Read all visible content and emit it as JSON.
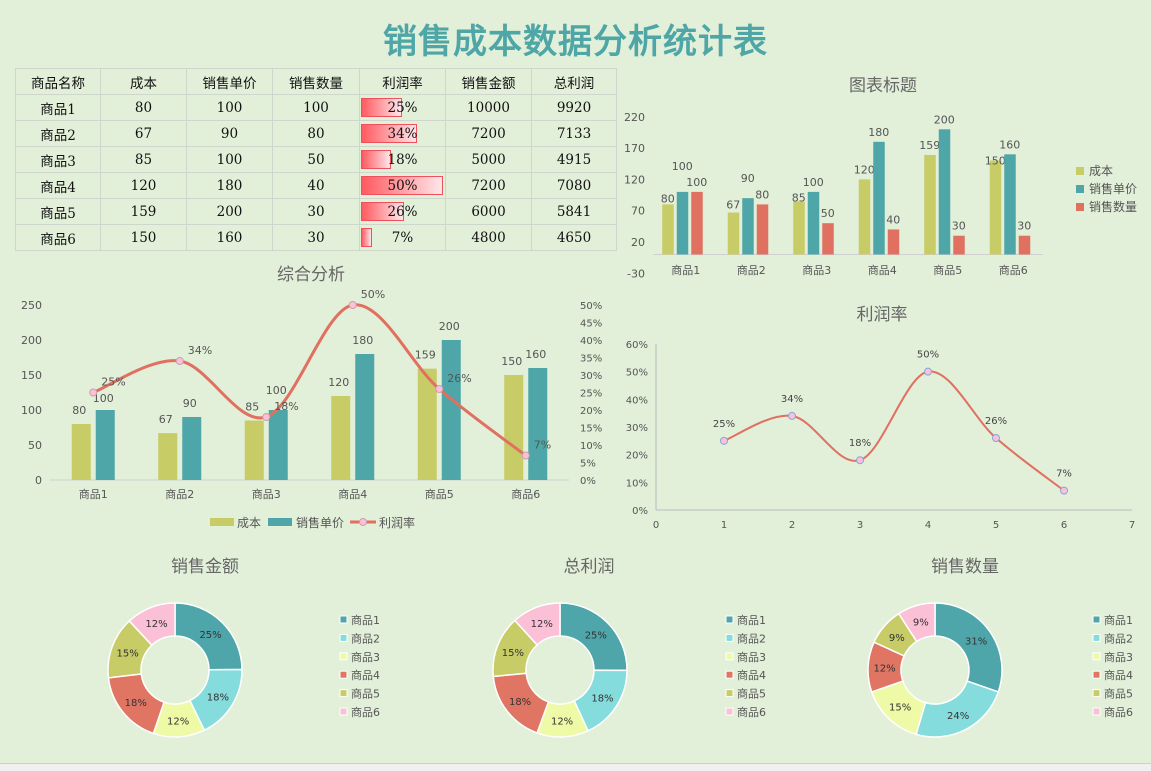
{
  "title": "销售成本数据分析统计表",
  "colors": {
    "cost": "#c8cc66",
    "price": "#4ea6a8",
    "qty": "#e07060",
    "line": "#e07060",
    "marker": "#ffc0d4",
    "donut": [
      "#4ea6aa",
      "#85dcdc",
      "#eefaa6",
      "#e07564",
      "#c8cc66",
      "#fbbfd6"
    ],
    "title": "#4ea6a6",
    "bar_fill": "#ff5a60"
  },
  "table": {
    "headers": [
      "商品名称",
      "成本",
      "销售单价",
      "销售数量",
      "利润率",
      "销售金额",
      "总利润"
    ],
    "rows": [
      {
        "name": "商品1",
        "cost": "80",
        "price": "100",
        "qty": "100",
        "margin": "25%",
        "margin_value": 25,
        "amount": "10000",
        "profit": "9920"
      },
      {
        "name": "商品2",
        "cost": "67",
        "price": "90",
        "qty": "80",
        "margin": "34%",
        "margin_value": 34,
        "amount": "7200",
        "profit": "7133"
      },
      {
        "name": "商品3",
        "cost": "85",
        "price": "100",
        "qty": "50",
        "margin": "18%",
        "margin_value": 18,
        "amount": "5000",
        "profit": "4915"
      },
      {
        "name": "商品4",
        "cost": "120",
        "price": "180",
        "qty": "40",
        "margin": "50%",
        "margin_value": 50,
        "amount": "7200",
        "profit": "7080"
      },
      {
        "name": "商品5",
        "cost": "159",
        "price": "200",
        "qty": "30",
        "margin": "26%",
        "margin_value": 26,
        "amount": "6000",
        "profit": "5841"
      },
      {
        "name": "商品6",
        "cost": "150",
        "price": "160",
        "qty": "30",
        "margin": "7%",
        "margin_value": 7,
        "amount": "4800",
        "profit": "4650"
      }
    ]
  },
  "chart_data": [
    {
      "type": "bar",
      "title": "图表标题",
      "categories": [
        "商品1",
        "商品2",
        "商品3",
        "商品4",
        "商品5",
        "商品6"
      ],
      "series": [
        {
          "name": "成本",
          "values": [
            80,
            67,
            85,
            120,
            159,
            150
          ]
        },
        {
          "name": "销售单价",
          "values": [
            100,
            90,
            100,
            180,
            200,
            160
          ]
        },
        {
          "name": "销售数量",
          "values": [
            100,
            80,
            50,
            40,
            30,
            30
          ]
        }
      ],
      "ylim": [
        -30,
        220
      ],
      "yticks": [
        220,
        170,
        120,
        70,
        20,
        -30
      ],
      "legend": "right",
      "data_labels": true
    },
    {
      "type": "bar+line",
      "title": "综合分析",
      "categories": [
        "商品1",
        "商品2",
        "商品3",
        "商品4",
        "商品5",
        "商品6"
      ],
      "series": [
        {
          "name": "成本",
          "values": [
            80,
            67,
            85,
            120,
            159,
            150
          ]
        },
        {
          "name": "销售单价",
          "values": [
            100,
            90,
            100,
            180,
            200,
            160
          ]
        },
        {
          "name": "利润率",
          "axis": "right",
          "values": [
            25,
            34,
            18,
            50,
            26,
            7
          ]
        }
      ],
      "ylim": [
        0,
        250
      ],
      "yticks": [
        0,
        50,
        100,
        150,
        200,
        250
      ],
      "y2lim": [
        0,
        50
      ],
      "y2ticks": [
        "0%",
        "5%",
        "10%",
        "15%",
        "20%",
        "25%",
        "30%",
        "35%",
        "40%",
        "45%",
        "50%"
      ],
      "legend": "bottom",
      "smooth": true
    },
    {
      "type": "scatter-line",
      "title": "利润率",
      "x": [
        1,
        2,
        3,
        4,
        5,
        6
      ],
      "y": [
        25,
        34,
        18,
        50,
        26,
        7
      ],
      "labels": [
        "25%",
        "34%",
        "18%",
        "50%",
        "26%",
        "7%"
      ],
      "xlim": [
        0,
        7
      ],
      "xticks": [
        "0",
        "1",
        "2",
        "3",
        "4",
        "5",
        "6",
        "7"
      ],
      "ylim": [
        0,
        60
      ],
      "yticks": [
        "0%",
        "10%",
        "20%",
        "30%",
        "40%",
        "50%",
        "60%"
      ],
      "smooth": true
    },
    {
      "type": "pie",
      "title": "销售金额",
      "donut": true,
      "categories": [
        "商品1",
        "商品2",
        "商品3",
        "商品4",
        "商品5",
        "商品6"
      ],
      "values": [
        10000,
        7200,
        5000,
        7200,
        6000,
        4800
      ],
      "labels": [
        "25%",
        "18%",
        "12%",
        "18%",
        "15%",
        "12%"
      ],
      "legend": "right"
    },
    {
      "type": "pie",
      "title": "总利润",
      "donut": true,
      "categories": [
        "商品1",
        "商品2",
        "商品3",
        "商品4",
        "商品5",
        "商品6"
      ],
      "values": [
        9920,
        7133,
        4915,
        7080,
        5841,
        4650
      ],
      "labels": [
        "25%",
        "18%",
        "12%",
        "18%",
        "15%",
        "12%"
      ],
      "legend": "right"
    },
    {
      "type": "pie",
      "title": "销售数量",
      "donut": true,
      "categories": [
        "商品1",
        "商品2",
        "商品3",
        "商品4",
        "商品5",
        "商品6"
      ],
      "values": [
        100,
        80,
        50,
        40,
        30,
        30
      ],
      "labels": [
        "31%",
        "24%",
        "15%",
        "12%",
        "9%",
        "9%"
      ],
      "legend": "right"
    }
  ]
}
